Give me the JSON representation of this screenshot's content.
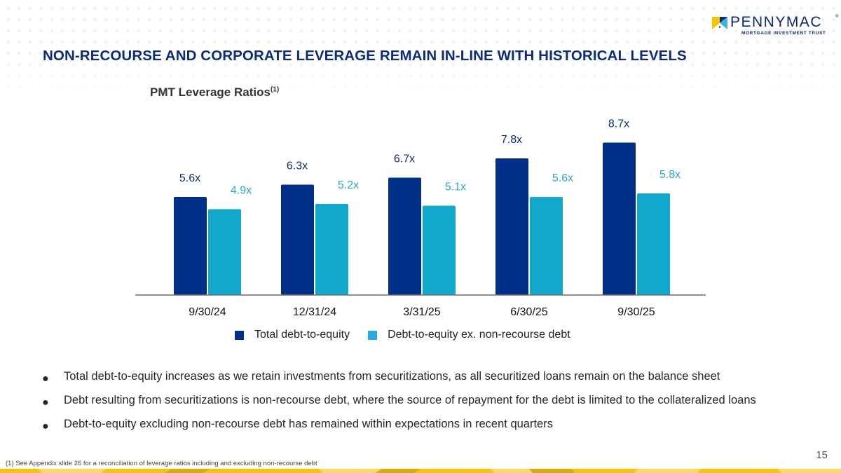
{
  "logo": {
    "wordmark": "PENNYMAC",
    "registered": "®",
    "subtitle": "MORTGAGE INVESTMENT TRUST"
  },
  "title": "NON-RECOURSE AND CORPORATE LEVERAGE REMAIN IN-LINE WITH HISTORICAL LEVELS",
  "chart_title": "PMT Leverage Ratios",
  "chart_title_footnote": "(1)",
  "colors": {
    "title": "#0d2b7c",
    "total": "#002f87",
    "ex_nonrecourse": "#12a8cb",
    "legend_ex_nonrecourse": "#29abe2",
    "stripe": "#f8c20d"
  },
  "chart_data": {
    "type": "bar",
    "title": "PMT Leverage Ratios(1)",
    "xlabel": "",
    "ylabel": "",
    "categories": [
      "9/30/24",
      "12/31/24",
      "3/31/25",
      "6/30/25",
      "9/30/25"
    ],
    "series": [
      {
        "name": "Total debt-to-equity",
        "values": [
          5.6,
          6.3,
          6.7,
          7.8,
          8.7
        ],
        "labels": [
          "5.6x",
          "6.3x",
          "6.7x",
          "7.8x",
          "8.7x"
        ],
        "color": "#002f87"
      },
      {
        "name": "Debt-to-equity ex. non-recourse debt",
        "values": [
          4.9,
          5.2,
          5.1,
          5.6,
          5.8
        ],
        "labels": [
          "4.9x",
          "5.2x",
          "5.1x",
          "5.6x",
          "5.8x"
        ],
        "color": "#12a8cb"
      }
    ],
    "ylim": [
      0,
      9
    ],
    "grid": false,
    "y_axis_visible": false,
    "legend": "bottom-center"
  },
  "legend": [
    {
      "label": "Total debt-to-equity"
    },
    {
      "label": "Debt-to-equity ex. non-recourse debt"
    }
  ],
  "bullets": [
    "Total debt-to-equity increases as we retain investments from securitizations, as all securitized loans remain on the balance sheet",
    "Debt resulting from securitizations is non-recourse debt, where the source of repayment for the debt is limited to the collateralized loans",
    "Debt-to-equity excluding non-recourse debt has remained within expectations in recent quarters"
  ],
  "bullet_glyph": "●",
  "page_number": "15",
  "footnote": "(1) See Appendix slide 26 for a reconciliation of leverage ratios including and excluding non-recourse debt"
}
